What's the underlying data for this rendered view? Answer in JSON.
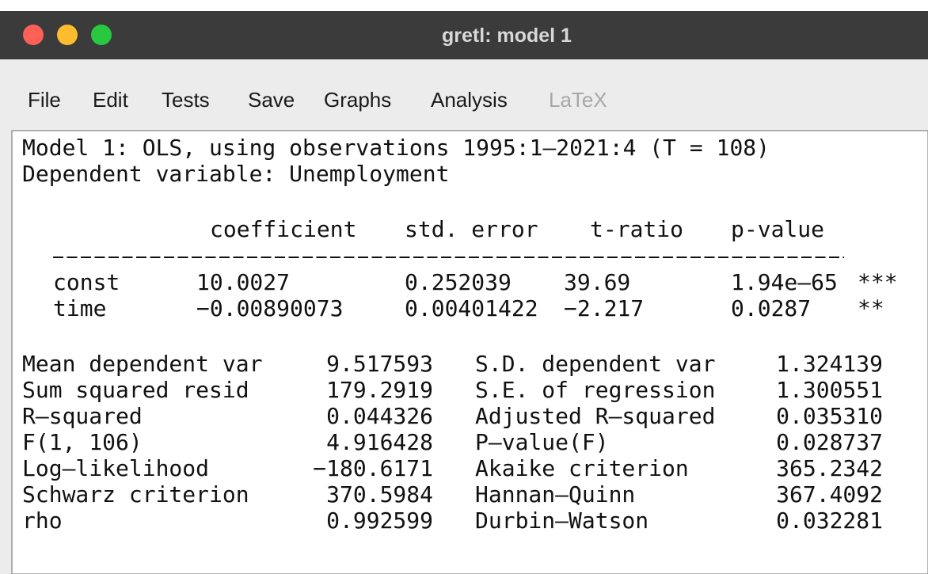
{
  "window": {
    "title": "gretl: model 1"
  },
  "menu": [
    "File",
    "Edit",
    "Tests",
    "Save",
    "Graphs",
    "Analysis",
    "LaTeX"
  ],
  "output": {
    "heading": [
      "Model 1: OLS, using observations 1995:1–2021:4 (T = 108)",
      "Dependent variable: Unemployment"
    ],
    "columns": [
      "coefficient",
      "std. error",
      "t-ratio",
      "p-value"
    ],
    "rows": [
      [
        "const",
        "10.0027",
        "0.252039",
        "39.69",
        "1.94e–65",
        "***"
      ],
      [
        "time",
        "−0.00890073",
        "0.00401422",
        "−2.217",
        "0.0287",
        "**"
      ]
    ],
    "stats": [
      [
        "Mean dependent var",
        "9.517593",
        "S.D. dependent var",
        "1.324139"
      ],
      [
        "Sum squared resid",
        "179.2919",
        "S.E. of regression",
        "1.300551"
      ],
      [
        "R–squared",
        "0.044326",
        "Adjusted R–squared",
        "0.035310"
      ],
      [
        "F(1, 106)",
        "4.916428",
        "P–value(F)",
        "0.028737"
      ],
      [
        "Log–likelihood",
        "−180.6171",
        "Akaike criterion",
        "365.2342"
      ],
      [
        "Schwarz criterion",
        "370.5984",
        "Hannan–Quinn",
        "367.4092"
      ],
      [
        "rho",
        "0.992599",
        "Durbin–Watson",
        "0.032281"
      ]
    ]
  }
}
